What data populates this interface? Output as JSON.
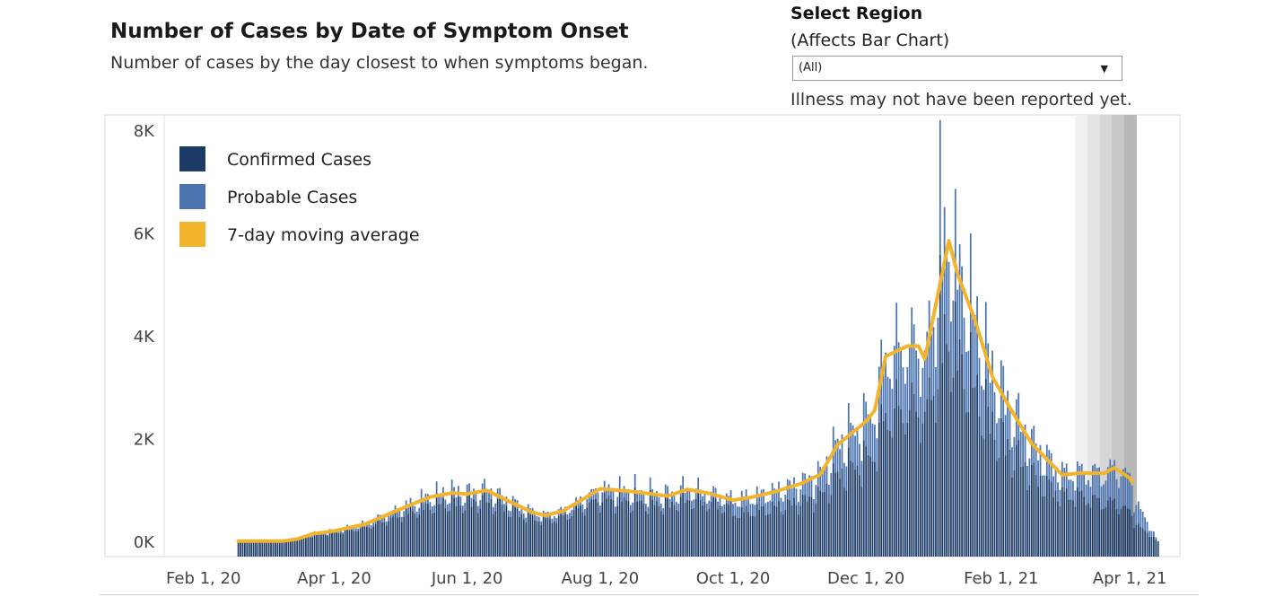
{
  "header": {
    "title": "Number of Cases by Date of Symptom Onset",
    "subtitle": "Number of cases by the day closest to when symptoms began."
  },
  "region_filter": {
    "label": "Select Region",
    "sublabel": "(Affects Bar Chart)",
    "selected": "(All)",
    "caret_icon": "caret-down-icon"
  },
  "note": "Illness may not have been reported yet.",
  "chart_data": {
    "type": "bar",
    "x_type": "date",
    "bar_mode": "stacked",
    "x_range": [
      "2020-01-14",
      "2021-04-24"
    ],
    "ylim": [
      -300,
      8300
    ],
    "y_ticks": [
      0,
      2000,
      4000,
      6000,
      8000
    ],
    "y_tick_labels": [
      "0K",
      "2K",
      "4K",
      "6K",
      "8K"
    ],
    "x_ticks": [
      "2020-02-01",
      "2020-04-01",
      "2020-06-01",
      "2020-08-01",
      "2020-10-01",
      "2020-12-01",
      "2021-02-01",
      "2021-04-01"
    ],
    "x_tick_labels": [
      "Feb 1, 20",
      "Apr 1, 20",
      "Jun 1, 20",
      "Aug 1, 20",
      "Oct 1, 20",
      "Dec 1, 20",
      "Feb 1, 21",
      "Apr 1, 21"
    ],
    "grid": false,
    "legend_position": "top-left",
    "colors": {
      "confirmed": "#1b3a66",
      "probable": "#4a73b0",
      "average": "#f2b42d"
    },
    "series": [
      {
        "name": "Confirmed Cases",
        "kind": "bar"
      },
      {
        "name": "Probable Cases",
        "kind": "bar"
      },
      {
        "name": "7-day moving average",
        "kind": "line"
      }
    ],
    "start_date": "2020-02-17",
    "moving_average_points": [
      [
        "2020-02-17",
        0
      ],
      [
        "2020-03-08",
        0
      ],
      [
        "2020-03-15",
        40
      ],
      [
        "2020-03-22",
        140
      ],
      [
        "2020-04-01",
        200
      ],
      [
        "2020-04-15",
        330
      ],
      [
        "2020-05-01",
        620
      ],
      [
        "2020-05-15",
        860
      ],
      [
        "2020-05-25",
        940
      ],
      [
        "2020-06-01",
        920
      ],
      [
        "2020-06-10",
        990
      ],
      [
        "2020-06-20",
        780
      ],
      [
        "2020-07-01",
        560
      ],
      [
        "2020-07-07",
        500
      ],
      [
        "2020-07-15",
        590
      ],
      [
        "2020-07-25",
        840
      ],
      [
        "2020-08-01",
        1020
      ],
      [
        "2020-08-15",
        970
      ],
      [
        "2020-09-01",
        880
      ],
      [
        "2020-09-10",
        1010
      ],
      [
        "2020-09-20",
        930
      ],
      [
        "2020-10-01",
        800
      ],
      [
        "2020-10-10",
        860
      ],
      [
        "2020-10-20",
        960
      ],
      [
        "2020-11-01",
        1120
      ],
      [
        "2020-11-10",
        1300
      ],
      [
        "2020-11-18",
        1880
      ],
      [
        "2020-12-01",
        2330
      ],
      [
        "2020-12-05",
        2550
      ],
      [
        "2020-12-10",
        3600
      ],
      [
        "2020-12-20",
        3800
      ],
      [
        "2020-12-25",
        3800
      ],
      [
        "2020-12-28",
        3550
      ],
      [
        "2021-01-02",
        4600
      ],
      [
        "2021-01-08",
        5850
      ],
      [
        "2021-01-12",
        5200
      ],
      [
        "2021-01-20",
        4300
      ],
      [
        "2021-01-28",
        3200
      ],
      [
        "2021-02-05",
        2600
      ],
      [
        "2021-02-15",
        1900
      ],
      [
        "2021-03-01",
        1290
      ],
      [
        "2021-03-10",
        1330
      ],
      [
        "2021-03-20",
        1320
      ],
      [
        "2021-03-25",
        1430
      ],
      [
        "2021-04-01",
        1230
      ],
      [
        "2021-04-02",
        1150
      ]
    ],
    "shaded_band_start": "2021-03-07",
    "shaded_band_end": "2021-04-04",
    "peak_daily_total": 8200
  }
}
